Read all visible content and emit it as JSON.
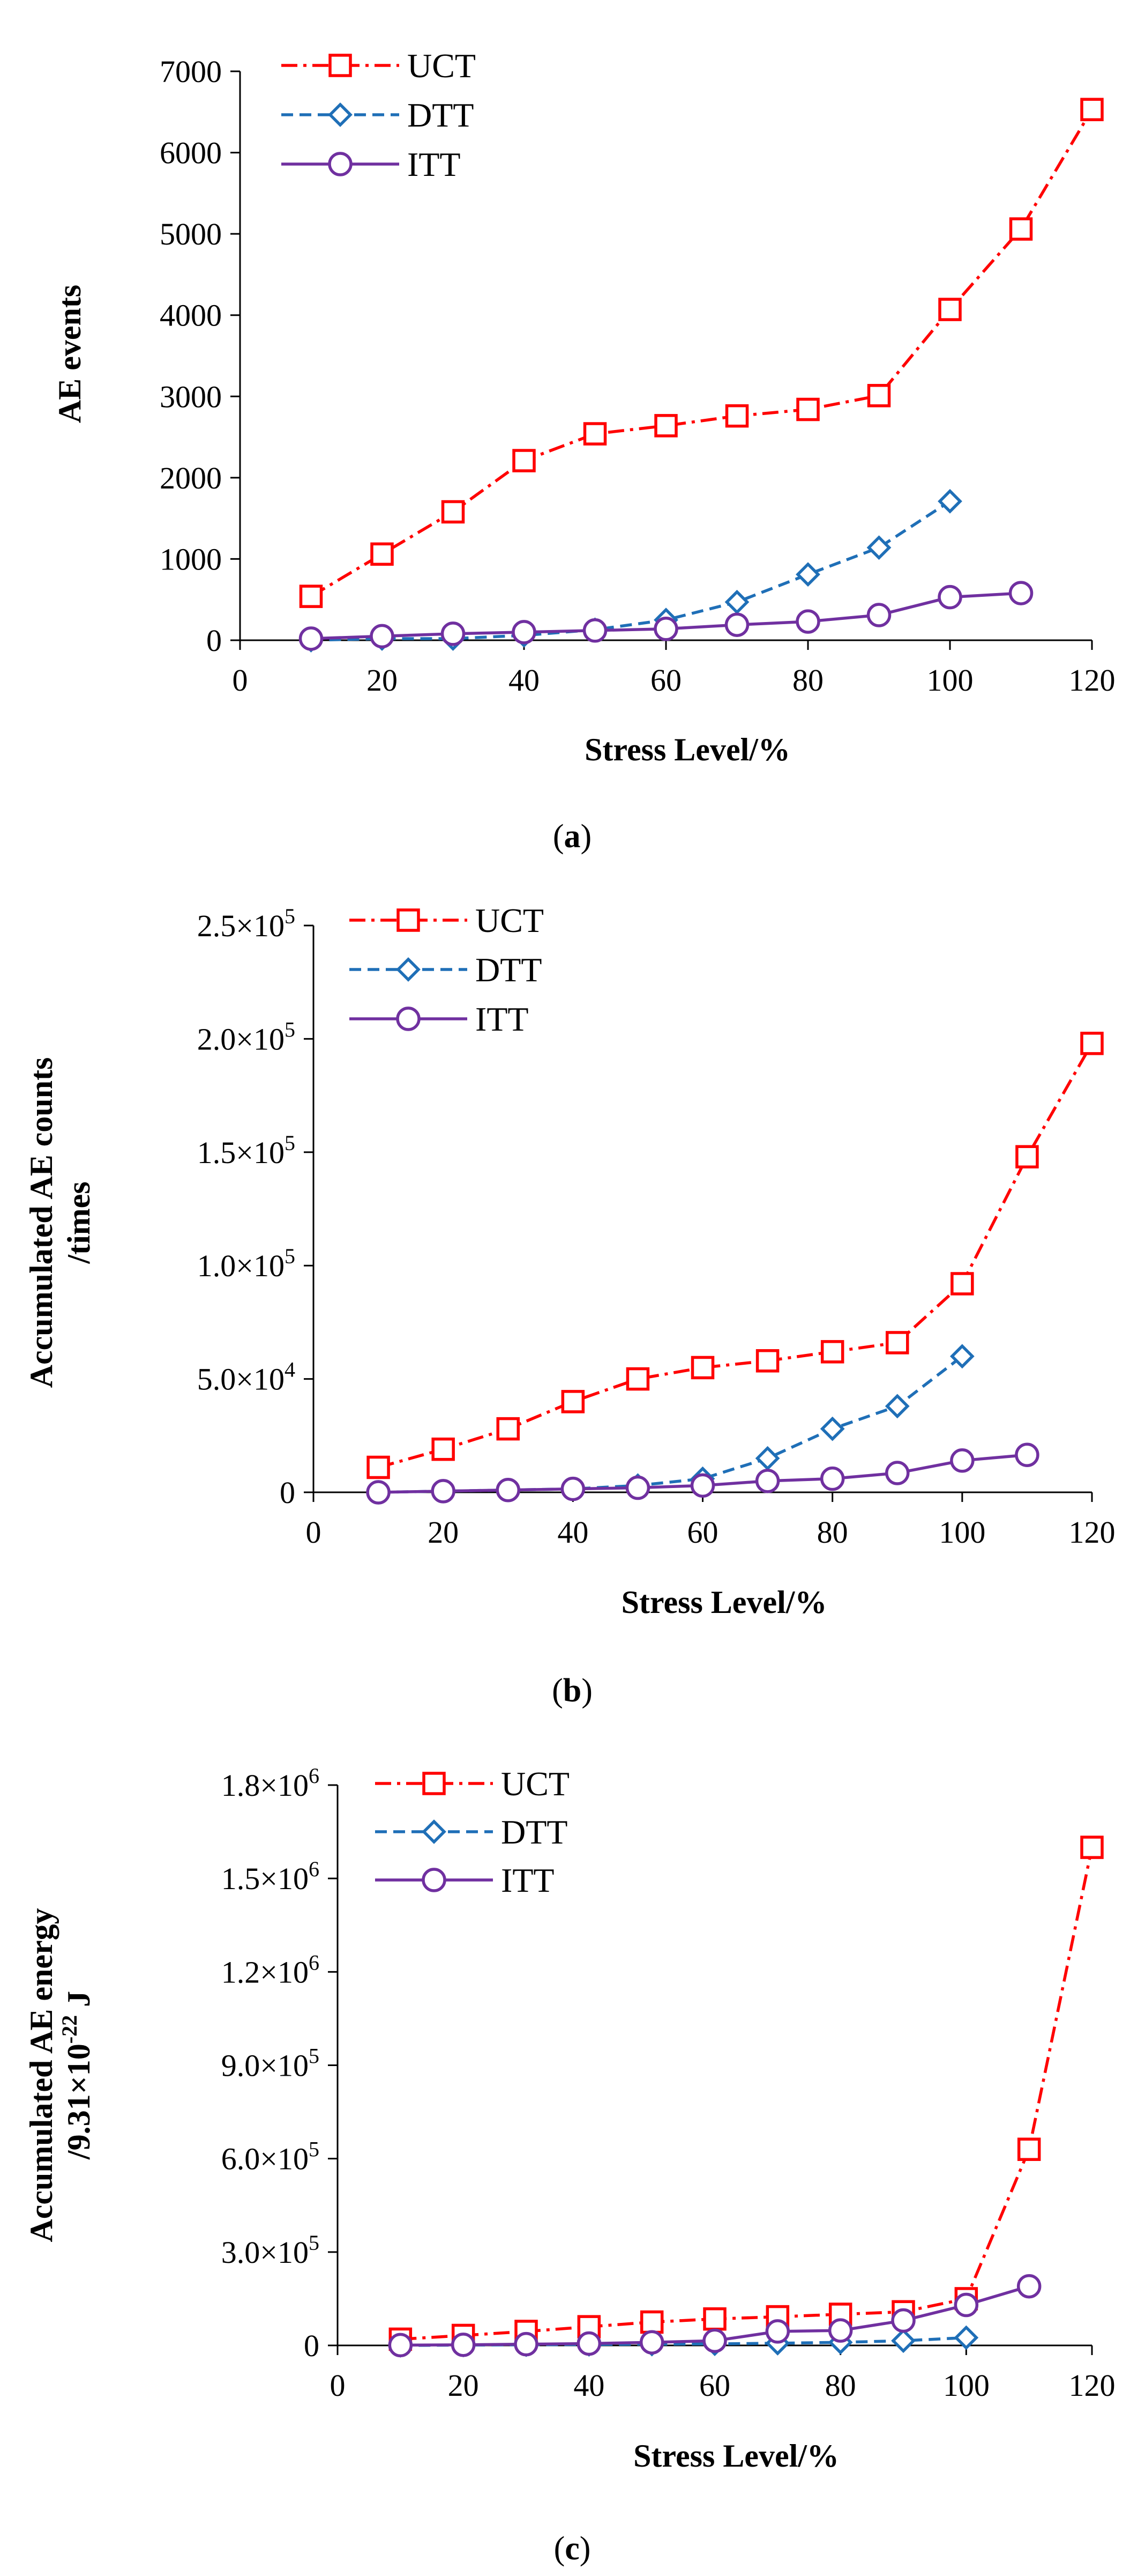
{
  "chart_data": [
    {
      "panel": "(a)",
      "type": "line",
      "title": "",
      "xlabel": "Stress Level/%",
      "ylabel_lines": [
        "AE events"
      ],
      "xlim": [
        0,
        120
      ],
      "ylim": [
        0,
        7000
      ],
      "xticks": [
        "0",
        "20",
        "40",
        "60",
        "80",
        "100",
        "120"
      ],
      "yticks": [
        "0",
        "1000",
        "2000",
        "3000",
        "4000",
        "5000",
        "6000",
        "7000"
      ],
      "legend": "top-left",
      "series": [
        {
          "name": "UCT",
          "color": "#ff0000",
          "dash": "dashdot",
          "marker": "square",
          "x": [
            10,
            20,
            30,
            40,
            50,
            60,
            70,
            80,
            90,
            100,
            110,
            120
          ],
          "y": [
            540,
            1060,
            1580,
            2210,
            2540,
            2640,
            2760,
            2840,
            3010,
            4070,
            5060,
            6530
          ]
        },
        {
          "name": "DTT",
          "color": "#1f6fb7",
          "dash": "dashed",
          "marker": "diamond",
          "x": [
            10,
            20,
            30,
            40,
            50,
            60,
            70,
            80,
            90,
            100
          ],
          "y": [
            0,
            20,
            20,
            60,
            130,
            250,
            470,
            810,
            1140,
            1710
          ]
        },
        {
          "name": "ITT",
          "color": "#7030a0",
          "dash": "solid",
          "marker": "circle",
          "x": [
            10,
            20,
            30,
            40,
            50,
            60,
            70,
            80,
            90,
            100,
            110
          ],
          "y": [
            20,
            50,
            80,
            100,
            120,
            140,
            190,
            230,
            310,
            530,
            580
          ]
        }
      ]
    },
    {
      "panel": "(b)",
      "type": "line",
      "title": "",
      "xlabel": "Stress Level/%",
      "ylabel_lines": [
        "Accumulated AE counts",
        "/times"
      ],
      "xlim": [
        0,
        120
      ],
      "ylim": [
        0,
        250000
      ],
      "xticks": [
        "0",
        "20",
        "40",
        "60",
        "80",
        "100",
        "120"
      ],
      "yticks": [
        {
          "m": "0",
          "e": ""
        },
        {
          "m": "5.0×10",
          "e": "4"
        },
        {
          "m": "1.0×10",
          "e": "5"
        },
        {
          "m": "1.5×10",
          "e": "5"
        },
        {
          "m": "2.0×10",
          "e": "5"
        },
        {
          "m": "2.5×10",
          "e": "5"
        }
      ],
      "legend": "top-left",
      "series": [
        {
          "name": "UCT",
          "color": "#ff0000",
          "dash": "dashdot",
          "marker": "square",
          "x": [
            10,
            20,
            30,
            40,
            50,
            60,
            70,
            80,
            90,
            100,
            110,
            120
          ],
          "y": [
            11000,
            19000,
            28000,
            40000,
            50000,
            55000,
            58000,
            62000,
            66000,
            92000,
            148000,
            198000
          ]
        },
        {
          "name": "DTT",
          "color": "#1f6fb7",
          "dash": "dashed",
          "marker": "diamond",
          "x": [
            10,
            20,
            30,
            40,
            50,
            60,
            70,
            80,
            90,
            100
          ],
          "y": [
            0,
            500,
            1000,
            1500,
            3000,
            6000,
            15000,
            28000,
            38000,
            60000
          ]
        },
        {
          "name": "ITT",
          "color": "#7030a0",
          "dash": "solid",
          "marker": "circle",
          "x": [
            10,
            20,
            30,
            40,
            50,
            60,
            70,
            80,
            90,
            100,
            110
          ],
          "y": [
            0,
            500,
            1000,
            1500,
            2000,
            3000,
            5000,
            6000,
            8500,
            14000,
            16500
          ]
        }
      ]
    },
    {
      "panel": "(c)",
      "type": "line",
      "title": "",
      "xlabel": "Stress Level/%",
      "ylabel_lines": [
        "Accumulated AE energy",
        "/9.31×10^-22 J"
      ],
      "xlim": [
        0,
        120
      ],
      "ylim": [
        0,
        1800000
      ],
      "xticks": [
        "0",
        "20",
        "40",
        "60",
        "80",
        "100",
        "120"
      ],
      "yticks": [
        {
          "m": "0",
          "e": ""
        },
        {
          "m": "3.0×10",
          "e": "5"
        },
        {
          "m": "6.0×10",
          "e": "5"
        },
        {
          "m": "9.0×10",
          "e": "5"
        },
        {
          "m": "1.2×10",
          "e": "6"
        },
        {
          "m": "1.5×10",
          "e": "6"
        },
        {
          "m": "1.8×10",
          "e": "6"
        }
      ],
      "legend": "top-left",
      "series": [
        {
          "name": "UCT",
          "color": "#ff0000",
          "dash": "dashdot",
          "marker": "square",
          "x": [
            10,
            20,
            30,
            40,
            50,
            60,
            70,
            80,
            90,
            100,
            110,
            120
          ],
          "y": [
            20000,
            32000,
            45000,
            60000,
            75000,
            85000,
            92000,
            100000,
            108000,
            150000,
            630000,
            1600000
          ]
        },
        {
          "name": "DTT",
          "color": "#1f6fb7",
          "dash": "dashed",
          "marker": "diamond",
          "x": [
            10,
            20,
            30,
            40,
            50,
            60,
            70,
            80,
            90,
            100
          ],
          "y": [
            0,
            1000,
            2000,
            3000,
            4000,
            5000,
            7000,
            10000,
            15000,
            25000
          ]
        },
        {
          "name": "ITT",
          "color": "#7030a0",
          "dash": "solid",
          "marker": "circle",
          "x": [
            10,
            20,
            30,
            40,
            50,
            60,
            70,
            80,
            90,
            100,
            110
          ],
          "y": [
            1000,
            2000,
            4000,
            6000,
            10000,
            15000,
            45000,
            48000,
            80000,
            130000,
            190000
          ]
        }
      ]
    }
  ],
  "energy_unit": {
    "prefix": "/9.31×10",
    "exponent": "-22",
    "suffix": "J"
  }
}
